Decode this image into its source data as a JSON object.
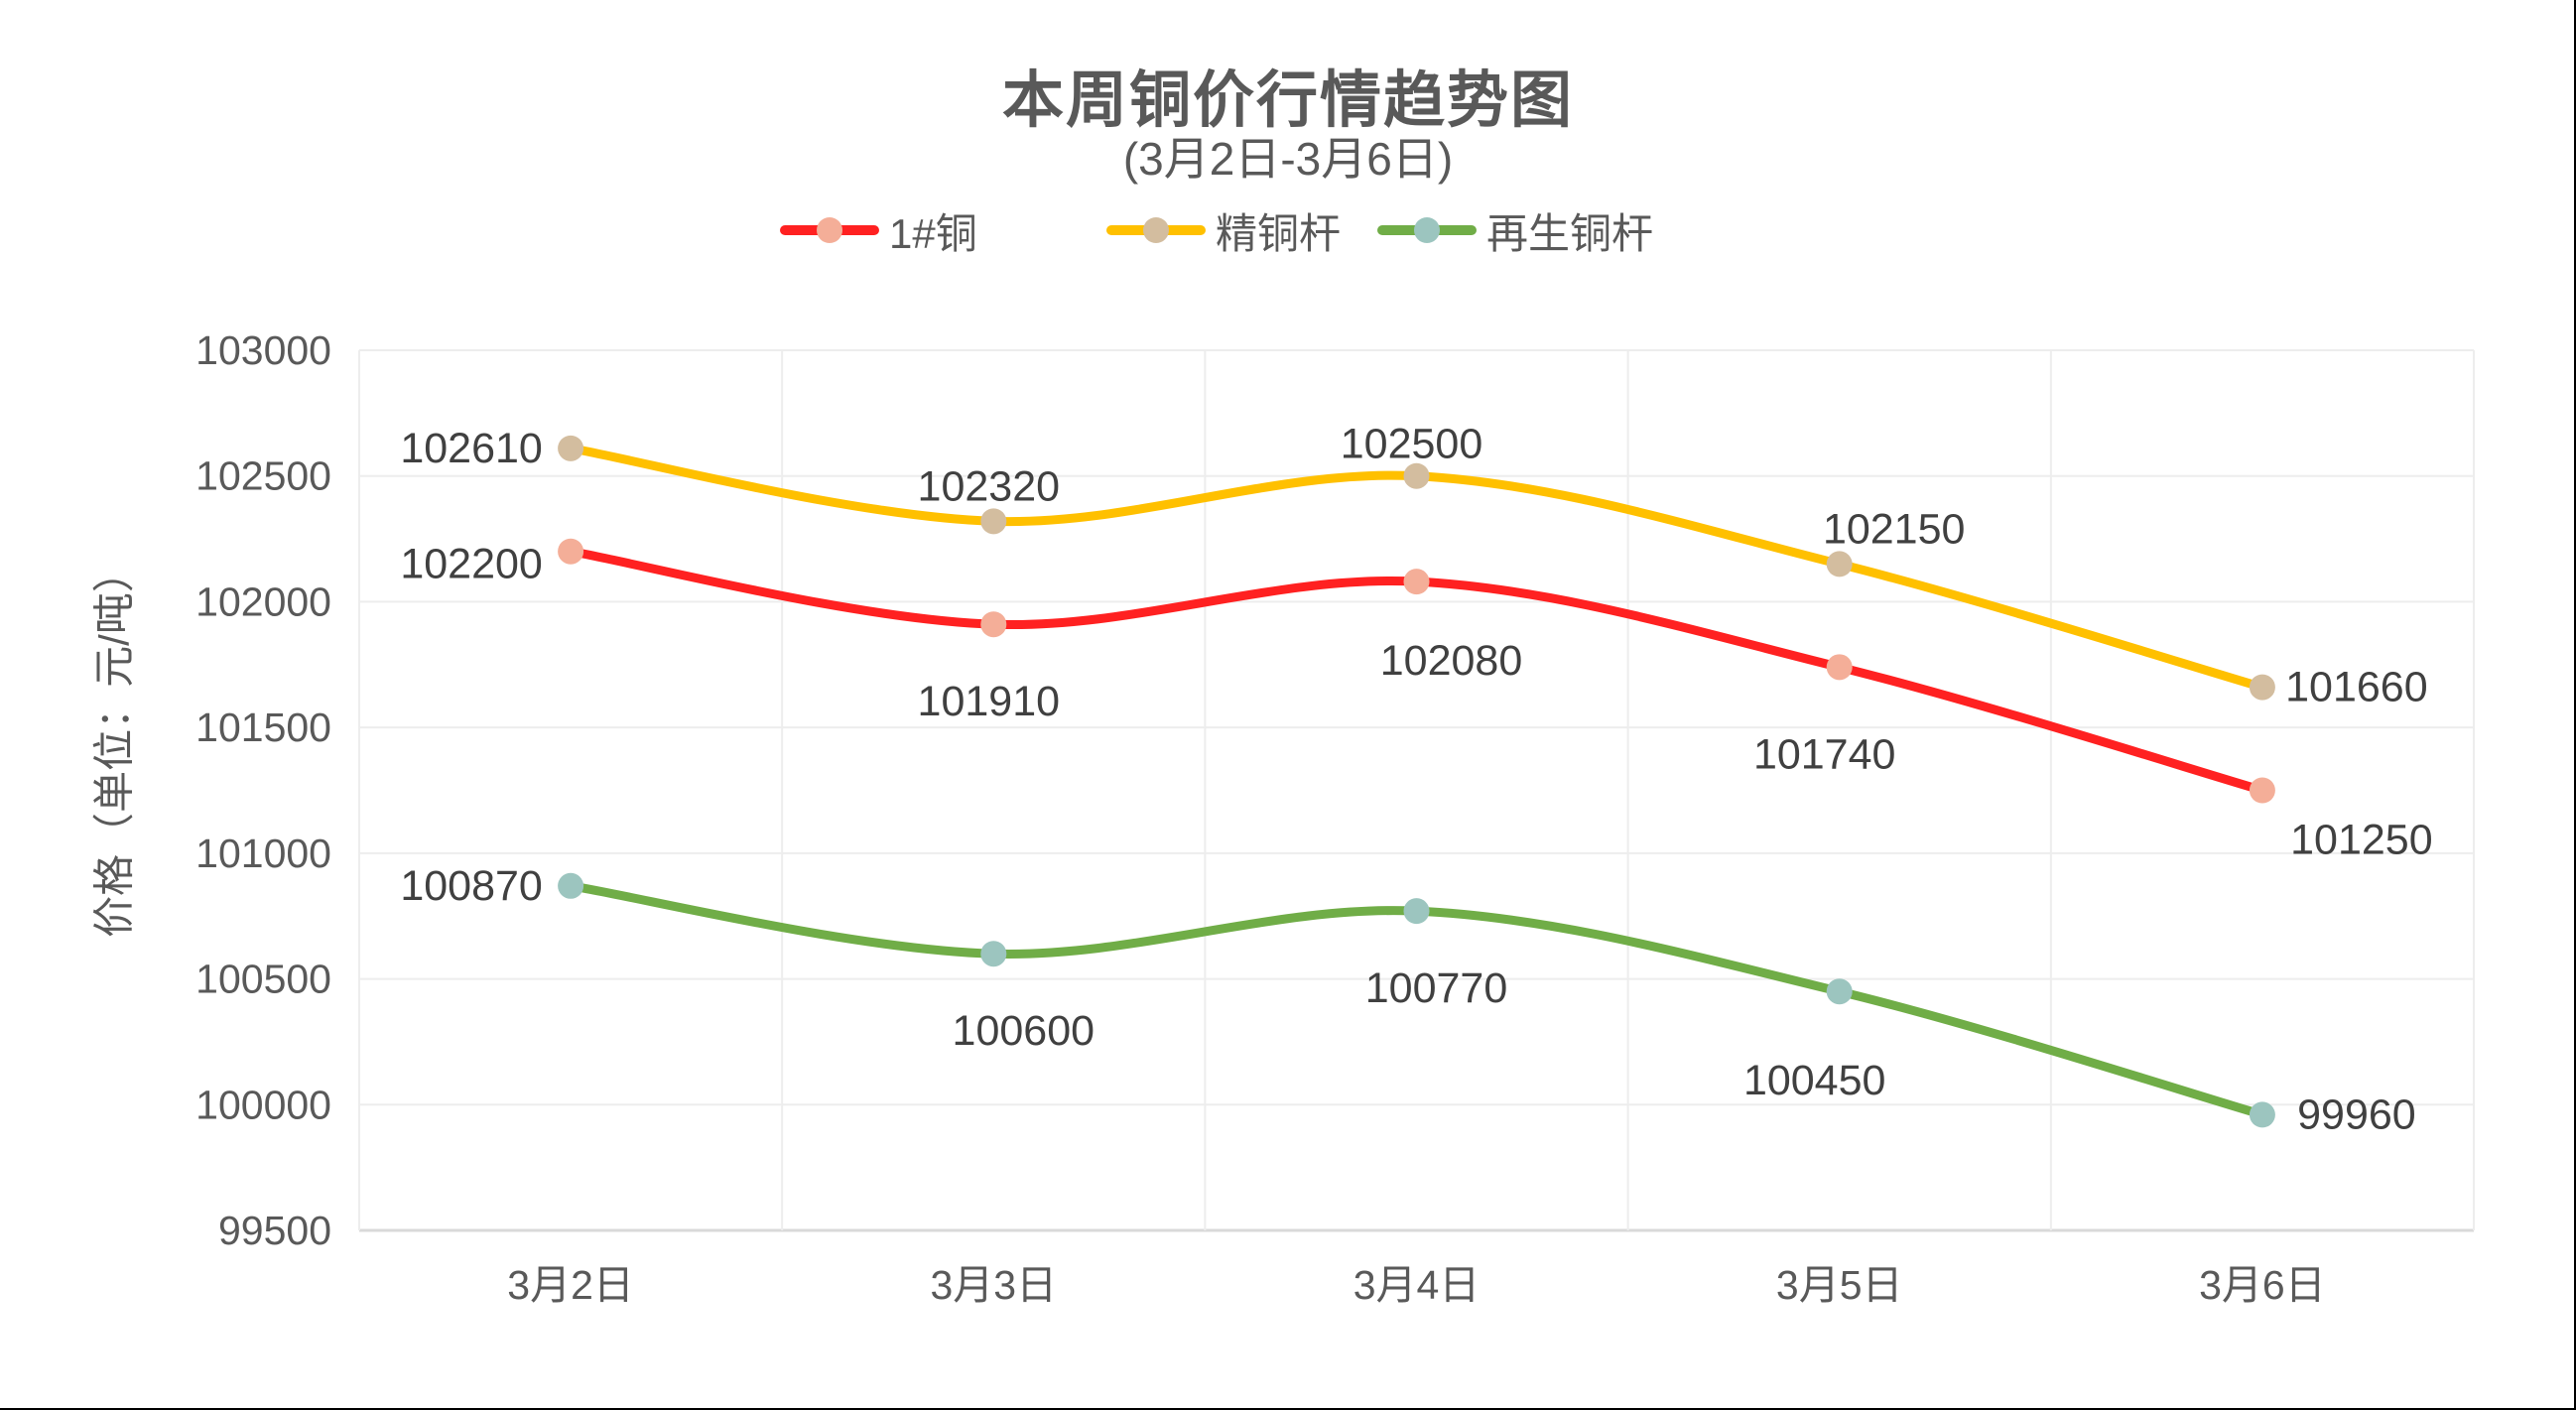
{
  "chart_data": {
    "type": "line",
    "title": "本周铜价行情趋势图",
    "subtitle": "(3月2日-3月6日)",
    "xlabel": "",
    "ylabel": "价格（单位：元/吨）",
    "categories": [
      "3月2日",
      "3月3日",
      "3月4日",
      "3月5日",
      "3月6日"
    ],
    "ylim": [
      99500,
      103000
    ],
    "yticks": [
      103000,
      102500,
      102000,
      101500,
      101000,
      100500,
      100000,
      99500
    ],
    "grid": true,
    "smooth": true,
    "legend_position": "top",
    "series": [
      {
        "name": "1#铜",
        "values": [
          102200,
          101910,
          102080,
          101740,
          101250
        ],
        "line_color": "#FF2121",
        "marker_color": "#F4AE98",
        "label_offsets": [
          [
            -100,
            13
          ],
          [
            -5,
            78
          ],
          [
            35,
            80
          ],
          [
            -15,
            88
          ],
          [
            100,
            50
          ]
        ]
      },
      {
        "name": "精铜杆",
        "values": [
          102610,
          102320,
          102500,
          102150,
          101660
        ],
        "line_color": "#FFC000",
        "marker_color": "#D3BD9F",
        "label_offsets": [
          [
            -100,
            0
          ],
          [
            -5,
            -35
          ],
          [
            -5,
            -32
          ],
          [
            55,
            -35
          ],
          [
            95,
            0
          ]
        ]
      },
      {
        "name": "再生铜杆",
        "values": [
          100870,
          100600,
          100770,
          100450,
          99960
        ],
        "line_color": "#70AD47",
        "marker_color": "#9CC5BF",
        "label_offsets": [
          [
            -100,
            0
          ],
          [
            30,
            78
          ],
          [
            20,
            78
          ],
          [
            -25,
            90
          ],
          [
            95,
            0
          ]
        ]
      }
    ]
  },
  "legend": {
    "items": [
      {
        "label": "1#铜"
      },
      {
        "label": "精铜杆"
      },
      {
        "label": "再生铜杆"
      }
    ]
  }
}
